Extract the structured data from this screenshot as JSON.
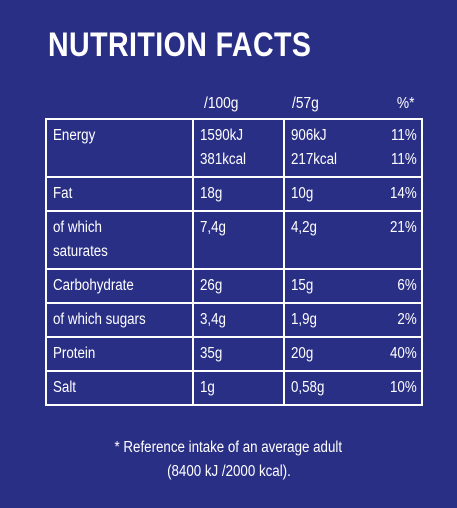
{
  "title": "NUTRITION FACTS",
  "headers": {
    "per100g": "/100g",
    "per57g": "/57g",
    "pct": "%*"
  },
  "rows": [
    {
      "label": "Energy",
      "per100g": [
        "1590kJ",
        "381kcal"
      ],
      "per57g": [
        "906kJ",
        "217kcal"
      ],
      "pct": [
        "11%",
        "11%"
      ]
    },
    {
      "label": "Fat",
      "per100g": [
        "18g"
      ],
      "per57g": [
        "10g"
      ],
      "pct": [
        "14%"
      ]
    },
    {
      "label": [
        "of which",
        "saturates"
      ],
      "per100g": [
        "7,4g"
      ],
      "per57g": [
        "4,2g"
      ],
      "pct": [
        "21%"
      ]
    },
    {
      "label": "Carbohydrate",
      "per100g": [
        "26g"
      ],
      "per57g": [
        "15g"
      ],
      "pct": [
        "6%"
      ]
    },
    {
      "label": "of which sugars",
      "per100g": [
        "3,4g"
      ],
      "per57g": [
        "1,9g"
      ],
      "pct": [
        "2%"
      ]
    },
    {
      "label": "Protein",
      "per100g": [
        "35g"
      ],
      "per57g": [
        "20g"
      ],
      "pct": [
        "40%"
      ]
    },
    {
      "label": "Salt",
      "per100g": [
        "1g"
      ],
      "per57g": [
        "0,58g"
      ],
      "pct": [
        "10%"
      ]
    }
  ],
  "footnote": {
    "line1": "* Reference intake of an average adult",
    "line2": "(8400 kJ /2000 kcal)."
  }
}
